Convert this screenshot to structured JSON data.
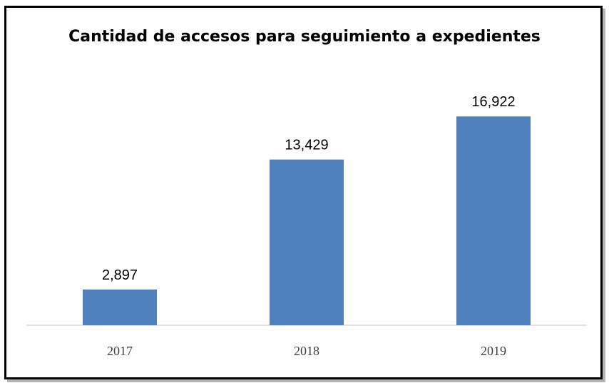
{
  "chart_data": {
    "type": "bar",
    "title": "Cantidad de accesos para seguimiento a expedientes",
    "categories": [
      "2017",
      "2018",
      "2019"
    ],
    "values": [
      2897,
      13429,
      16922
    ],
    "value_labels": [
      "2,897",
      "13,429",
      "16,922"
    ],
    "xlabel": "",
    "ylabel": "",
    "ylim": [
      0,
      20000
    ],
    "grid": false,
    "legend": "none",
    "bar_color": "#4F81BD",
    "axis_color": "#D9D9D9"
  }
}
